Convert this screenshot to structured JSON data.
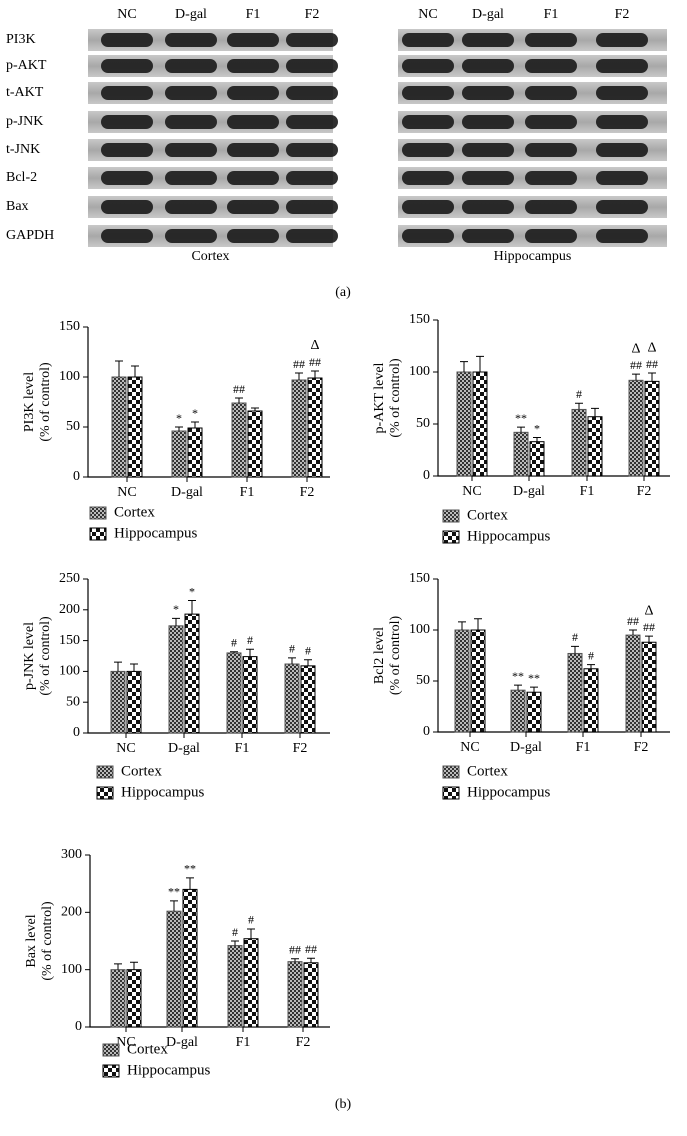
{
  "blot": {
    "lanes": [
      "NC",
      "D-gal",
      "F1",
      "F2"
    ],
    "proteins": [
      "PI3K",
      "p-AKT",
      "t-AKT",
      "p-JNK",
      "t-JNK",
      "Bcl-2",
      "Bax",
      "GAPDH"
    ],
    "regions": [
      "Cortex",
      "Hippocampus"
    ],
    "panel_label": "(a)"
  },
  "panel_b_label": "(b)",
  "chart_data": [
    {
      "type": "bar",
      "y_label": [
        "PI3K level",
        "(% of control)"
      ],
      "categories": [
        "NC",
        "D-gal",
        "F1",
        "F2"
      ],
      "ylim": [
        0,
        150
      ],
      "yticks": [
        0,
        50,
        100,
        150
      ],
      "series": [
        {
          "name": "Cortex",
          "color": "#555555",
          "pattern": "fine",
          "values": [
            100,
            46,
            74,
            97
          ],
          "errors": [
            16,
            4,
            5,
            7
          ],
          "labels": [
            null,
            "*",
            "##",
            "##"
          ],
          "labels2": [
            null,
            null,
            null,
            null
          ]
        },
        {
          "name": "Hippocampus",
          "color": "#000000",
          "pattern": "coarse",
          "values": [
            100,
            49,
            66,
            99
          ],
          "errors": [
            11,
            6,
            3,
            7
          ],
          "labels": [
            null,
            "*",
            null,
            "##"
          ],
          "labels2": [
            null,
            null,
            null,
            "Δ"
          ]
        }
      ]
    },
    {
      "type": "bar",
      "y_label": [
        "p-AKT level",
        "(% of control)"
      ],
      "categories": [
        "NC",
        "D-gal",
        "F1",
        "F2"
      ],
      "ylim": [
        0,
        150
      ],
      "yticks": [
        0,
        50,
        100,
        150
      ],
      "series": [
        {
          "name": "Cortex",
          "color": "#555555",
          "pattern": "fine",
          "values": [
            100,
            42,
            64,
            92
          ],
          "errors": [
            10,
            5,
            6,
            6
          ],
          "labels": [
            null,
            "**",
            "#",
            "##"
          ],
          "labels2": [
            null,
            null,
            null,
            "Δ"
          ]
        },
        {
          "name": "Hippocampus",
          "color": "#000000",
          "pattern": "coarse",
          "values": [
            100,
            33,
            57,
            91
          ],
          "errors": [
            15,
            4,
            8,
            8
          ],
          "labels": [
            null,
            "*",
            null,
            "##"
          ],
          "labels2": [
            null,
            null,
            null,
            "Δ"
          ]
        }
      ]
    },
    {
      "type": "bar",
      "y_label": [
        "p-JNK level",
        "(% of control)"
      ],
      "categories": [
        "NC",
        "D-gal",
        "F1",
        "F2"
      ],
      "ylim": [
        0,
        250
      ],
      "yticks": [
        0,
        50,
        100,
        150,
        200,
        250
      ],
      "series": [
        {
          "name": "Cortex",
          "color": "#555555",
          "pattern": "fine",
          "values": [
            100,
            174,
            130,
            112
          ],
          "errors": [
            15,
            12,
            2,
            10
          ],
          "labels": [
            null,
            "*",
            "#",
            "#"
          ],
          "labels2": [
            null,
            null,
            null,
            null
          ]
        },
        {
          "name": "Hippocampus",
          "color": "#000000",
          "pattern": "coarse",
          "values": [
            100,
            193,
            124,
            109
          ],
          "errors": [
            12,
            22,
            12,
            10
          ],
          "labels": [
            null,
            "*",
            "#",
            "#"
          ],
          "labels2": [
            null,
            null,
            null,
            null
          ]
        }
      ]
    },
    {
      "type": "bar",
      "y_label": [
        "Bcl2 level",
        "(% of control)"
      ],
      "categories": [
        "NC",
        "D-gal",
        "F1",
        "F2"
      ],
      "ylim": [
        0,
        150
      ],
      "yticks": [
        0,
        50,
        100,
        150
      ],
      "series": [
        {
          "name": "Cortex",
          "color": "#555555",
          "pattern": "fine",
          "values": [
            100,
            41,
            77,
            95
          ],
          "errors": [
            8,
            5,
            7,
            5
          ],
          "labels": [
            null,
            "**",
            "#",
            "##"
          ],
          "labels2": [
            null,
            null,
            null,
            null
          ]
        },
        {
          "name": "Hippocampus",
          "color": "#000000",
          "pattern": "coarse",
          "values": [
            100,
            39,
            62,
            88
          ],
          "errors": [
            11,
            5,
            4,
            6
          ],
          "labels": [
            null,
            "**",
            "#",
            "##"
          ],
          "labels2": [
            null,
            null,
            null,
            "Δ"
          ]
        }
      ]
    },
    {
      "type": "bar",
      "y_label": [
        "Bax level",
        "(% of control)"
      ],
      "categories": [
        "NC",
        "D-gal",
        "F1",
        "F2"
      ],
      "ylim": [
        0,
        300
      ],
      "yticks": [
        0,
        100,
        200,
        300
      ],
      "series": [
        {
          "name": "Cortex",
          "color": "#555555",
          "pattern": "fine",
          "values": [
            100,
            202,
            142,
            114
          ],
          "errors": [
            10,
            18,
            8,
            5
          ],
          "labels": [
            null,
            "**",
            "#",
            "##"
          ],
          "labels2": [
            null,
            null,
            null,
            null
          ]
        },
        {
          "name": "Hippocampus",
          "color": "#000000",
          "pattern": "coarse",
          "values": [
            100,
            240,
            154,
            112
          ],
          "errors": [
            13,
            20,
            17,
            8
          ],
          "labels": [
            null,
            "**",
            "#",
            "##"
          ],
          "labels2": [
            null,
            null,
            null,
            null
          ]
        }
      ]
    }
  ]
}
